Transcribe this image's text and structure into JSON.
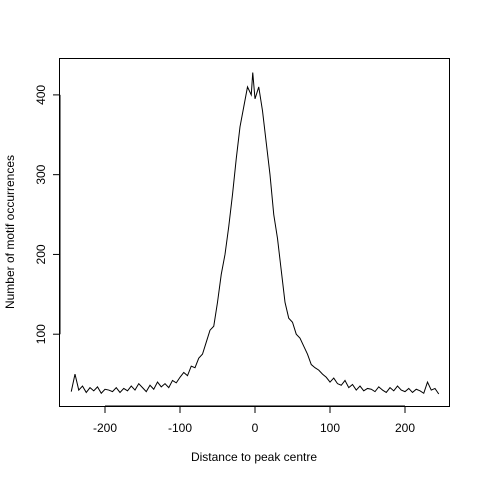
{
  "chart_data": {
    "type": "line",
    "title": "",
    "xlabel": "Distance to peak centre",
    "ylabel": "Number of motif occurrences",
    "xlim": [
      -260,
      260
    ],
    "ylim": [
      10,
      445
    ],
    "xticks": [
      -200,
      -100,
      0,
      100,
      200
    ],
    "yticks": [
      100,
      200,
      300,
      400
    ],
    "grid": false,
    "legend": "none",
    "line_color": "#000000",
    "series": [
      {
        "x": [
          -245,
          -240,
          -235,
          -230,
          -225,
          -220,
          -215,
          -210,
          -205,
          -200,
          -195,
          -190,
          -185,
          -180,
          -175,
          -170,
          -165,
          -160,
          -155,
          -150,
          -145,
          -140,
          -135,
          -130,
          -125,
          -120,
          -115,
          -110,
          -105,
          -100,
          -95,
          -90,
          -85,
          -80,
          -75,
          -70,
          -65,
          -60,
          -55,
          -50,
          -45,
          -40,
          -35,
          -30,
          -25,
          -20,
          -15,
          -10,
          -5,
          -3,
          0,
          5,
          10,
          15,
          20,
          25,
          30,
          35,
          40,
          45,
          50,
          55,
          60,
          65,
          70,
          75,
          80,
          85,
          90,
          95,
          100,
          105,
          110,
          115,
          120,
          125,
          130,
          135,
          140,
          145,
          150,
          155,
          160,
          165,
          170,
          175,
          180,
          185,
          190,
          195,
          200,
          205,
          210,
          215,
          220,
          225,
          230,
          235,
          240,
          245
        ],
        "y": [
          28,
          50,
          30,
          35,
          27,
          33,
          29,
          34,
          26,
          31,
          30,
          28,
          33,
          27,
          32,
          29,
          35,
          30,
          38,
          33,
          28,
          36,
          31,
          40,
          34,
          38,
          33,
          42,
          39,
          46,
          52,
          48,
          60,
          58,
          70,
          75,
          90,
          105,
          110,
          140,
          175,
          200,
          235,
          275,
          320,
          360,
          385,
          410,
          400,
          428,
          395,
          410,
          380,
          340,
          300,
          250,
          220,
          180,
          140,
          120,
          115,
          100,
          95,
          85,
          75,
          62,
          58,
          55,
          50,
          46,
          40,
          45,
          38,
          36,
          42,
          33,
          37,
          30,
          35,
          29,
          32,
          31,
          28,
          34,
          30,
          27,
          33,
          29,
          35,
          30,
          28,
          32,
          27,
          31,
          29,
          26,
          40,
          30,
          32,
          25
        ]
      }
    ]
  }
}
